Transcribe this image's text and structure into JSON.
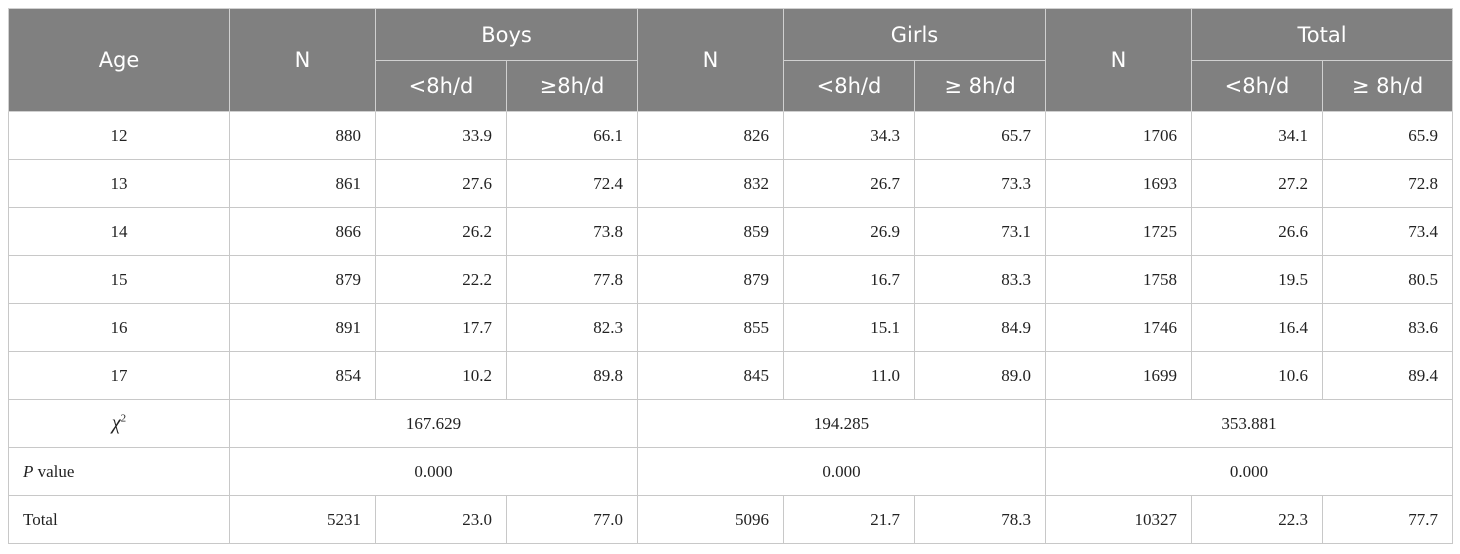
{
  "header": {
    "age": "Age",
    "groups": [
      {
        "n": "N",
        "name": "Boys",
        "cols": [
          "<8h/d",
          "≥8h/d"
        ]
      },
      {
        "n": "N",
        "name": "Girls",
        "cols": [
          "<8h/d",
          "≥ 8h/d"
        ]
      },
      {
        "n": "N",
        "name": "Total",
        "cols": [
          "<8h/d",
          "≥ 8h/d"
        ]
      }
    ]
  },
  "rows": [
    [
      "12",
      "880",
      "33.9",
      "66.1",
      "826",
      "34.3",
      "65.7",
      "1706",
      "34.1",
      "65.9"
    ],
    [
      "13",
      "861",
      "27.6",
      "72.4",
      "832",
      "26.7",
      "73.3",
      "1693",
      "27.2",
      "72.8"
    ],
    [
      "14",
      "866",
      "26.2",
      "73.8",
      "859",
      "26.9",
      "73.1",
      "1725",
      "26.6",
      "73.4"
    ],
    [
      "15",
      "879",
      "22.2",
      "77.8",
      "879",
      "16.7",
      "83.3",
      "1758",
      "19.5",
      "80.5"
    ],
    [
      "16",
      "891",
      "17.7",
      "82.3",
      "855",
      "15.1",
      "84.9",
      "1746",
      "16.4",
      "83.6"
    ],
    [
      "17",
      "854",
      "10.2",
      "89.8",
      "845",
      "11.0",
      "89.0",
      "1699",
      "10.6",
      "89.4"
    ]
  ],
  "chi_square": {
    "label": {
      "symbol": "χ",
      "sup": "2"
    },
    "values": [
      "167.629",
      "194.285",
      "353.881"
    ]
  },
  "p_value": {
    "label": {
      "italic": "P",
      "rest": " value"
    },
    "values": [
      "0.000",
      "0.000",
      "0.000"
    ]
  },
  "total": {
    "label": "Total",
    "values": [
      "5231",
      "23.0",
      "77.0",
      "5096",
      "21.7",
      "78.3",
      "10327",
      "22.3",
      "77.7"
    ]
  }
}
